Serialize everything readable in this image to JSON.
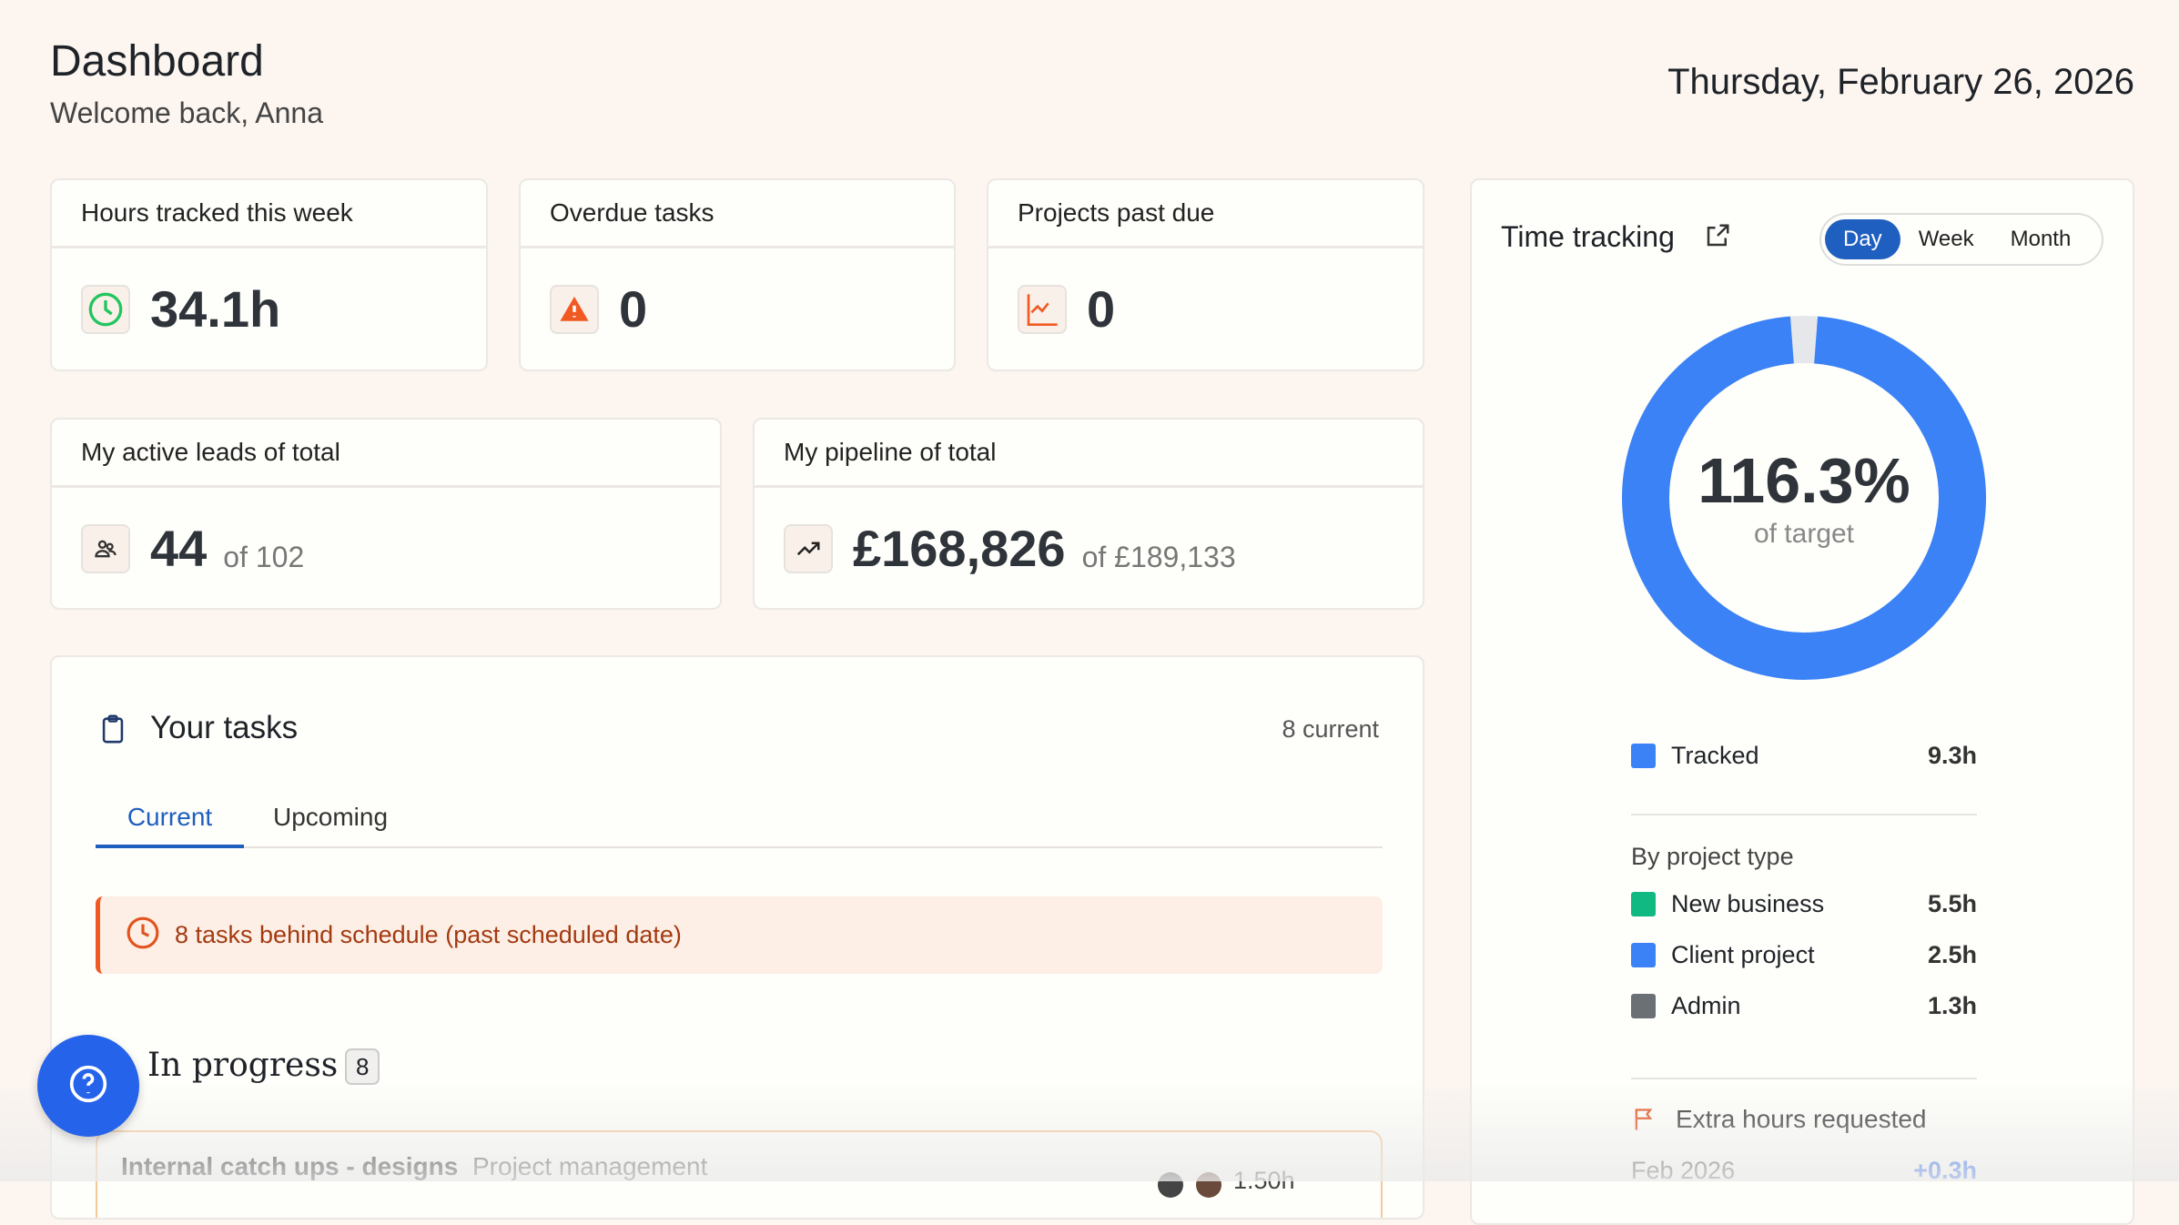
{
  "header": {
    "title": "Dashboard",
    "subtitle": "Welcome back, Anna",
    "date": "Thursday, February 26, 2026"
  },
  "stats": [
    {
      "label": "Hours tracked this week",
      "value": "34.1h",
      "icon": "clock-icon",
      "color": "#22c55e"
    },
    {
      "label": "Overdue tasks",
      "value": "0",
      "icon": "warning-icon",
      "color": "#f05a22"
    },
    {
      "label": "Projects past due",
      "value": "0",
      "icon": "chart-line-icon",
      "color": "#f05a22"
    }
  ],
  "leads": {
    "label": "My active leads of total",
    "value": "44",
    "total": "of 102",
    "icon": "users-icon"
  },
  "pipeline": {
    "label": "My pipeline of total",
    "value": "£168,826",
    "total": "of £189,133",
    "icon": "trending-up-icon"
  },
  "tasks": {
    "title": "Your tasks",
    "count": "8 current",
    "tabs": [
      "Current",
      "Upcoming"
    ],
    "active_tab": "Current",
    "alert": "8 tasks behind schedule (past scheduled date)",
    "group": {
      "title": "In progress",
      "count": "8"
    },
    "items": [
      {
        "name": "Internal catch ups - designs",
        "category": "Project management",
        "hours": "1.50h"
      }
    ]
  },
  "time_tracking": {
    "title": "Time tracking",
    "periods": [
      "Day",
      "Week",
      "Month"
    ],
    "active_period": "Day",
    "percent": "116.3%",
    "percent_label": "of target",
    "fill_fraction": 1.0,
    "tracked": {
      "label": "Tracked",
      "value": "9.3h",
      "color": "#3b82f6"
    },
    "by_type_title": "By project type",
    "types": [
      {
        "label": "New business",
        "value": "5.5h",
        "color": "#10b981"
      },
      {
        "label": "Client project",
        "value": "2.5h",
        "color": "#3b82f6"
      },
      {
        "label": "Admin",
        "value": "1.3h",
        "color": "#6b7075"
      }
    ],
    "extra": {
      "title": "Extra hours requested",
      "month": "Feb 2026",
      "value": "+0.3h"
    }
  },
  "help": {
    "icon": "help-icon"
  }
}
